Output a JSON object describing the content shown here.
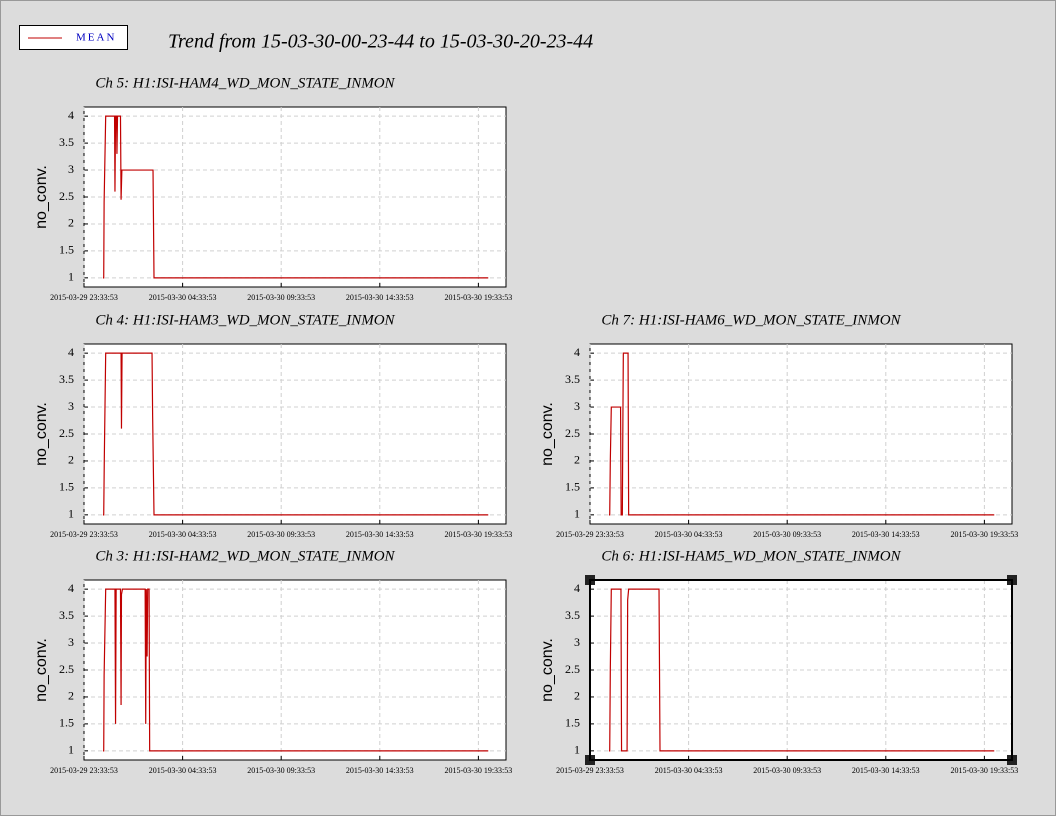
{
  "title": "Trend from 15-03-30-00-23-44 to 15-03-30-20-23-44",
  "legend": {
    "name": "MEAN",
    "color": "#c00000"
  },
  "chart_data": [
    {
      "type": "line",
      "title": "Ch 5: H1:ISI-HAM4_WD_MON_STATE_INMON",
      "y_label": "no_conv.",
      "grid": true,
      "xlim": [
        0,
        21.4
      ],
      "ylim": [
        0.83,
        4.17
      ],
      "yticks": [
        1,
        1.5,
        2,
        2.5,
        3,
        3.5,
        4
      ],
      "xticks": [
        {
          "value": 0,
          "label": "2015-03-29 23:33:53"
        },
        {
          "value": 5,
          "label": "2015-03-30 04:33:53"
        },
        {
          "value": 10,
          "label": "2015-03-30 09:33:53"
        },
        {
          "value": 15,
          "label": "2015-03-30 14:33:53"
        },
        {
          "value": 20,
          "label": "2015-03-30 19:33:53"
        }
      ],
      "x": [
        0.96,
        1.0,
        1.02,
        1.1,
        1.55,
        1.57,
        1.6,
        1.65,
        1.67,
        1.7,
        1.85,
        1.88,
        1.92,
        3.5,
        3.55,
        20.5
      ],
      "series": [
        {
          "color": "#c00000",
          "values": [
            1,
            1,
            2.4,
            4,
            4,
            2.6,
            4,
            4,
            3.3,
            4,
            4,
            2.45,
            3,
            3,
            1,
            1
          ]
        }
      ]
    },
    {
      "type": "line",
      "title": "Ch 4: H1:ISI-HAM3_WD_MON_STATE_INMON",
      "y_label": "no_conv.",
      "grid": true,
      "xlim": [
        0,
        21.4
      ],
      "ylim": [
        0.83,
        4.17
      ],
      "yticks": [
        1,
        1.5,
        2,
        2.5,
        3,
        3.5,
        4
      ],
      "xticks": [
        {
          "value": 0,
          "label": "2015-03-29 23:33:53"
        },
        {
          "value": 5,
          "label": "2015-03-30 04:33:53"
        },
        {
          "value": 10,
          "label": "2015-03-30 09:33:53"
        },
        {
          "value": 15,
          "label": "2015-03-30 14:33:53"
        },
        {
          "value": 20,
          "label": "2015-03-30 19:33:53"
        }
      ],
      "x": [
        0.96,
        1.0,
        1.03,
        1.1,
        1.88,
        1.9,
        1.93,
        3.45,
        3.48,
        3.55,
        20.5
      ],
      "series": [
        {
          "color": "#c00000",
          "values": [
            1,
            1,
            2.05,
            4,
            4,
            2.6,
            4,
            4,
            2.85,
            1,
            1
          ]
        }
      ]
    },
    {
      "type": "line",
      "title": "Ch 7: H1:ISI-HAM6_WD_MON_STATE_INMON",
      "y_label": "no_conv.",
      "grid": true,
      "xlim": [
        0,
        21.4
      ],
      "ylim": [
        0.83,
        4.17
      ],
      "yticks": [
        1,
        1.5,
        2,
        2.5,
        3,
        3.5,
        4
      ],
      "xticks": [
        {
          "value": 0,
          "label": "2015-03-29 23:33:53"
        },
        {
          "value": 5,
          "label": "2015-03-30 04:33:53"
        },
        {
          "value": 10,
          "label": "2015-03-30 09:33:53"
        },
        {
          "value": 15,
          "label": "2015-03-30 14:33:53"
        },
        {
          "value": 20,
          "label": "2015-03-30 19:33:53"
        }
      ],
      "x": [
        0.96,
        1.0,
        1.03,
        1.08,
        1.55,
        1.58,
        1.64,
        1.66,
        1.69,
        1.93,
        1.96,
        20.5
      ],
      "series": [
        {
          "color": "#c00000",
          "values": [
            1,
            1,
            2,
            3,
            3,
            1,
            1,
            2.3,
            4,
            4,
            1,
            1
          ]
        }
      ]
    },
    {
      "type": "line",
      "title": "Ch 3: H1:ISI-HAM2_WD_MON_STATE_INMON",
      "y_label": "no_conv.",
      "grid": true,
      "xlim": [
        0,
        21.4
      ],
      "ylim": [
        0.83,
        4.17
      ],
      "yticks": [
        1,
        1.5,
        2,
        2.5,
        3,
        3.5,
        4
      ],
      "xticks": [
        {
          "value": 0,
          "label": "2015-03-29 23:33:53"
        },
        {
          "value": 5,
          "label": "2015-03-30 04:33:53"
        },
        {
          "value": 10,
          "label": "2015-03-30 09:33:53"
        },
        {
          "value": 15,
          "label": "2015-03-30 14:33:53"
        },
        {
          "value": 20,
          "label": "2015-03-30 19:33:53"
        }
      ],
      "x": [
        0.96,
        1.0,
        1.02,
        1.1,
        1.57,
        1.6,
        1.63,
        1.85,
        1.88,
        1.9,
        1.95,
        3.1,
        3.13,
        3.16,
        3.2,
        3.23,
        3.3,
        3.33,
        20.5
      ],
      "series": [
        {
          "color": "#c00000",
          "values": [
            1,
            1,
            2.4,
            4,
            4,
            1.5,
            4,
            4,
            1.85,
            3.9,
            4,
            4,
            1.5,
            4,
            2.75,
            4,
            4,
            1,
            1
          ]
        }
      ]
    },
    {
      "type": "line",
      "title": "Ch 6: H1:ISI-HAM5_WD_MON_STATE_INMON",
      "y_label": "no_conv.",
      "grid": true,
      "selected": true,
      "xlim": [
        0,
        21.4
      ],
      "ylim": [
        0.83,
        4.17
      ],
      "yticks": [
        1,
        1.5,
        2,
        2.5,
        3,
        3.5,
        4
      ],
      "xticks": [
        {
          "value": 0,
          "label": "2015-03-29 23:33:53"
        },
        {
          "value": 5,
          "label": "2015-03-30 04:33:53"
        },
        {
          "value": 10,
          "label": "2015-03-30 09:33:53"
        },
        {
          "value": 15,
          "label": "2015-03-30 14:33:53"
        },
        {
          "value": 20,
          "label": "2015-03-30 19:33:53"
        }
      ],
      "x": [
        0.96,
        1.0,
        1.03,
        1.08,
        1.57,
        1.6,
        1.88,
        1.91,
        1.96,
        3.5,
        3.55,
        20.5
      ],
      "series": [
        {
          "color": "#c00000",
          "values": [
            1,
            1,
            2.5,
            4,
            4,
            1,
            1,
            3.8,
            4,
            4,
            1,
            1
          ]
        }
      ]
    }
  ]
}
